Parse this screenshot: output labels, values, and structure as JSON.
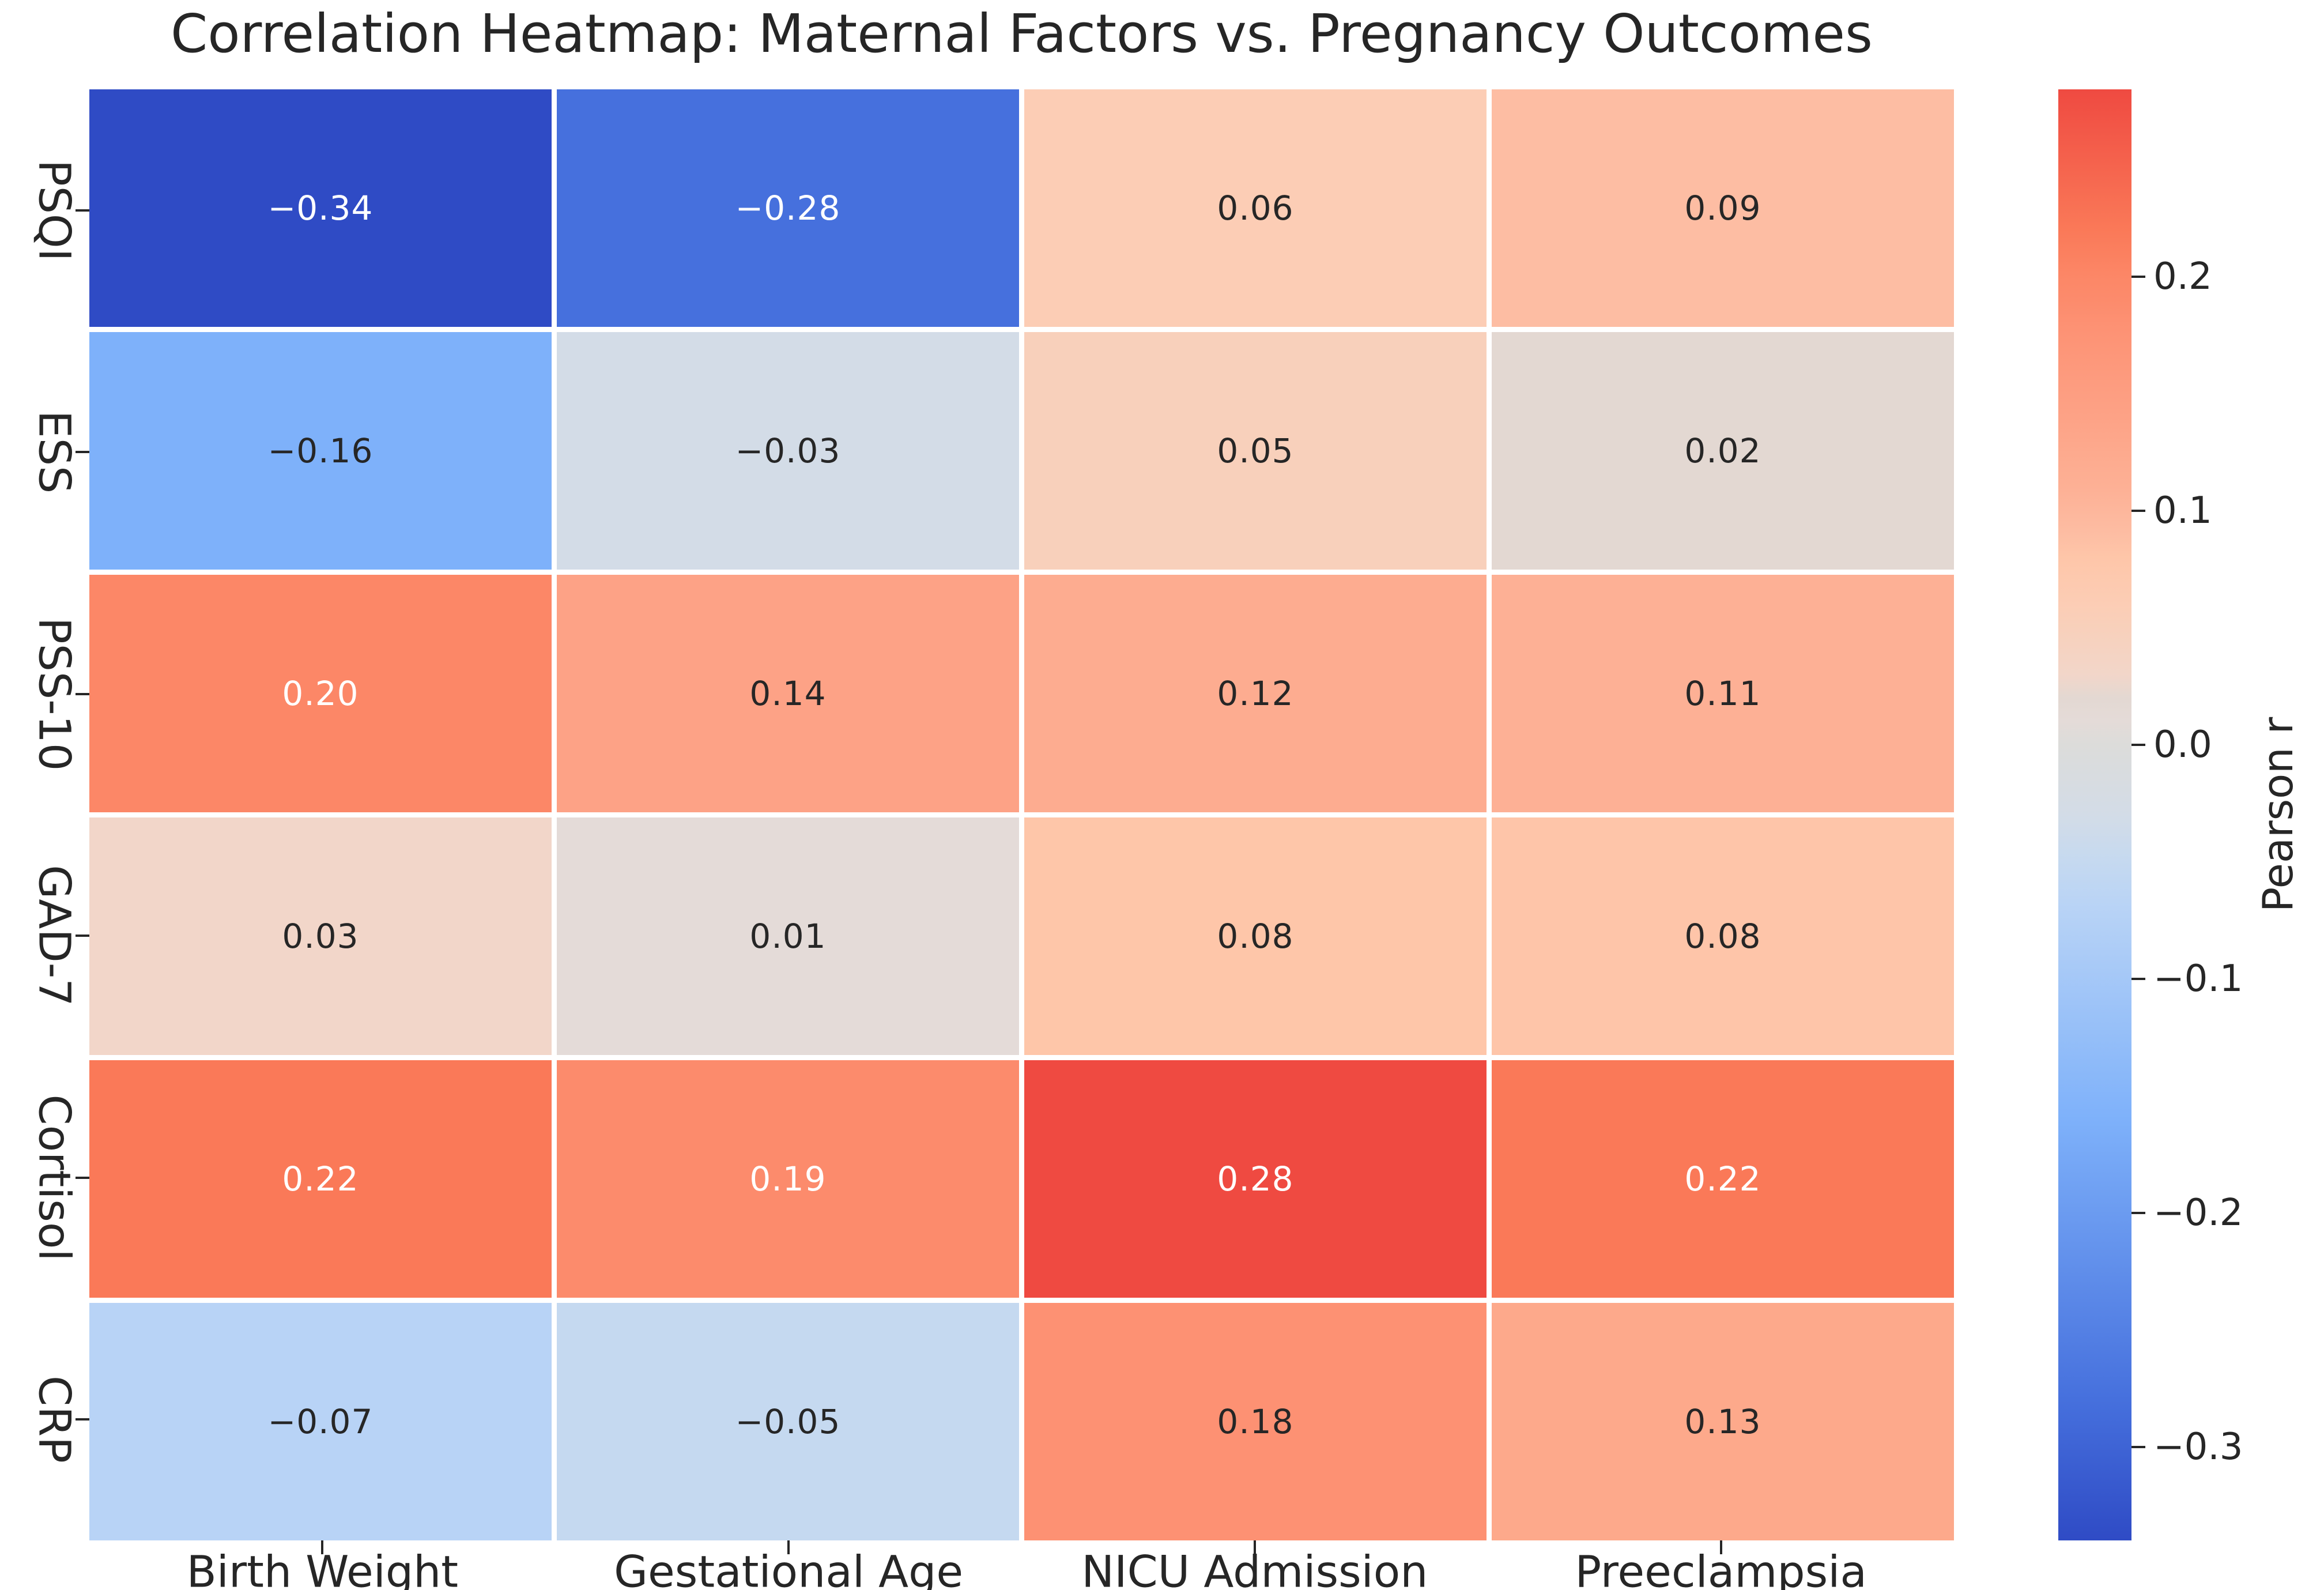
{
  "title": "Correlation Heatmap: Maternal Factors vs. Pregnancy Outcomes",
  "chart_data": {
    "type": "heatmap",
    "title": "Correlation Heatmap: Maternal Factors vs. Pregnancy Outcomes",
    "rows": [
      "PSQI",
      "ESS",
      "PSS-10",
      "GAD-7",
      "Cortisol",
      "CRP"
    ],
    "columns": [
      "Birth Weight",
      "Gestational Age",
      "NICU Admission",
      "Preeclampsia"
    ],
    "values": [
      [
        -0.34,
        -0.28,
        0.06,
        0.09
      ],
      [
        -0.16,
        -0.03,
        0.05,
        0.02
      ],
      [
        0.2,
        0.14,
        0.12,
        0.11
      ],
      [
        0.03,
        0.01,
        0.08,
        0.08
      ],
      [
        0.22,
        0.19,
        0.28,
        0.22
      ],
      [
        -0.07,
        -0.05,
        0.18,
        0.13
      ]
    ],
    "cell_labels": [
      [
        "−0.34",
        "−0.28",
        "0.06",
        "0.09"
      ],
      [
        "−0.16",
        "−0.03",
        "0.05",
        "0.02"
      ],
      [
        "0.20",
        "0.14",
        "0.12",
        "0.11"
      ],
      [
        "0.03",
        "0.01",
        "0.08",
        "0.08"
      ],
      [
        "0.22",
        "0.19",
        "0.28",
        "0.22"
      ],
      [
        "−0.07",
        "−0.05",
        "0.18",
        "0.13"
      ]
    ],
    "cell_colors": [
      [
        "#2F4BC5",
        "#4670DD",
        "#FCCDB5",
        "#FDBDA3"
      ],
      [
        "#7EB1FA",
        "#D3DCE7",
        "#F8D0BB",
        "#E3D8D2"
      ],
      [
        "#FC8767",
        "#FDA286",
        "#FDAC90",
        "#FDB095"
      ],
      [
        "#F2D6C9",
        "#E4DBD8",
        "#FEC6A9",
        "#FEC5A9"
      ],
      [
        "#FA7958",
        "#FC8B6C",
        "#EF4A41",
        "#FA7958"
      ],
      [
        "#B8D3F6",
        "#C5D9F0",
        "#FD9173",
        "#FDA98B"
      ]
    ],
    "cell_text_colors": [
      [
        "white",
        "white",
        "dark",
        "dark"
      ],
      [
        "dark",
        "dark",
        "dark",
        "dark"
      ],
      [
        "white",
        "dark",
        "dark",
        "dark"
      ],
      [
        "dark",
        "dark",
        "dark",
        "dark"
      ],
      [
        "white",
        "white",
        "white",
        "white"
      ],
      [
        "dark",
        "dark",
        "dark",
        "dark"
      ]
    ],
    "grid_on": false,
    "colorbar": {
      "label": "Pearson r",
      "vmin": -0.34,
      "vmax": 0.28,
      "ticks": [
        {
          "value": 0.2,
          "label": "0.2"
        },
        {
          "value": 0.1,
          "label": "0.1"
        },
        {
          "value": 0.0,
          "label": "0.0"
        },
        {
          "value": -0.1,
          "label": "−0.1"
        },
        {
          "value": -0.2,
          "label": "−0.2"
        },
        {
          "value": -0.3,
          "label": "−0.3"
        }
      ],
      "gradient_stops": [
        {
          "value": 0.28,
          "color": "#EF4A41"
        },
        {
          "value": 0.22,
          "color": "#FA7958"
        },
        {
          "value": 0.2,
          "color": "#FC8767"
        },
        {
          "value": 0.19,
          "color": "#FC8B6C"
        },
        {
          "value": 0.18,
          "color": "#FD9173"
        },
        {
          "value": 0.14,
          "color": "#FDA286"
        },
        {
          "value": 0.12,
          "color": "#FDAC90"
        },
        {
          "value": 0.11,
          "color": "#FDB095"
        },
        {
          "value": 0.09,
          "color": "#FDBDA3"
        },
        {
          "value": 0.08,
          "color": "#FEC6A9"
        },
        {
          "value": 0.06,
          "color": "#FCCDB5"
        },
        {
          "value": 0.05,
          "color": "#F8D0BB"
        },
        {
          "value": 0.03,
          "color": "#F2D6C9"
        },
        {
          "value": 0.02,
          "color": "#E3D8D2"
        },
        {
          "value": 0.01,
          "color": "#E4DBD8"
        },
        {
          "value": 0.0,
          "color": "#DCDCDA"
        },
        {
          "value": -0.03,
          "color": "#D3DCE7"
        },
        {
          "value": -0.05,
          "color": "#C5D9F0"
        },
        {
          "value": -0.07,
          "color": "#B8D3F6"
        },
        {
          "value": -0.16,
          "color": "#7EB1FA"
        },
        {
          "value": -0.28,
          "color": "#4670DD"
        },
        {
          "value": -0.34,
          "color": "#2F4BC5"
        }
      ]
    },
    "annotation_text_dark_hex": "#262626",
    "annotation_text_white_hex": "#ffffff"
  }
}
